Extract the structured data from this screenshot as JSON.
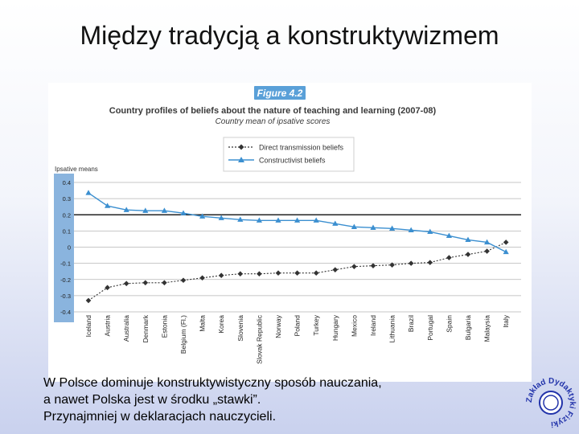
{
  "slide": {
    "title": "Między tradycją a konstruktywizmem",
    "caption": [
      "W Polsce dominuje konstruktywistyczny sposób nauczania,",
      "a nawet Polska jest w środku „stawki”.",
      "Przynajmniej w deklaracjach nauczycieli."
    ],
    "logo_text": "Zakład Dydaktyki Fizyki"
  },
  "colors": {
    "figure_badge": "#5aa0d8",
    "title_text": "#3a3a3a",
    "constructivist": "#3b8fd0",
    "direct": "#333333",
    "y_axis_band": "#8ab4de",
    "logo": "#2233aa"
  },
  "chart_data": {
    "type": "line",
    "figure_label": "Figure 4.2",
    "title": "Country profiles of beliefs about the nature of teaching and learning (2007-08)",
    "subtitle": "Country mean of ipsative scores",
    "ylabel": "Ipsative means",
    "ylim": [
      -0.4,
      0.4
    ],
    "yticks": [
      "0.4",
      "0.3",
      "0.2",
      "0.1",
      "0",
      "-0.1",
      "-0.2",
      "-0.3",
      "-0.4"
    ],
    "grid": true,
    "legend_position": "top-center",
    "categories": [
      "Iceland",
      "Austria",
      "Australia",
      "Denmark",
      "Estonia",
      "Belgium (Fl.)",
      "Malta",
      "Korea",
      "Slovenia",
      "Slovak Republic",
      "Norway",
      "Poland",
      "Turkey",
      "Hungary",
      "Mexico",
      "Ireland",
      "Lithuania",
      "Brazil",
      "Portugal",
      "Spain",
      "Bulgaria",
      "Malaysia",
      "Italy"
    ],
    "series": [
      {
        "name": "Direct transmission beliefs",
        "values": [
          -0.33,
          -0.25,
          -0.225,
          -0.22,
          -0.22,
          -0.205,
          -0.19,
          -0.175,
          -0.165,
          -0.165,
          -0.16,
          -0.16,
          -0.16,
          -0.14,
          -0.12,
          -0.115,
          -0.11,
          -0.1,
          -0.095,
          -0.065,
          -0.045,
          -0.025,
          0.03
        ]
      },
      {
        "name": "Constructivist beliefs",
        "values": [
          0.335,
          0.255,
          0.23,
          0.225,
          0.225,
          0.21,
          0.19,
          0.18,
          0.17,
          0.165,
          0.165,
          0.165,
          0.165,
          0.145,
          0.125,
          0.12,
          0.115,
          0.105,
          0.095,
          0.07,
          0.045,
          0.03,
          -0.03
        ]
      }
    ]
  }
}
